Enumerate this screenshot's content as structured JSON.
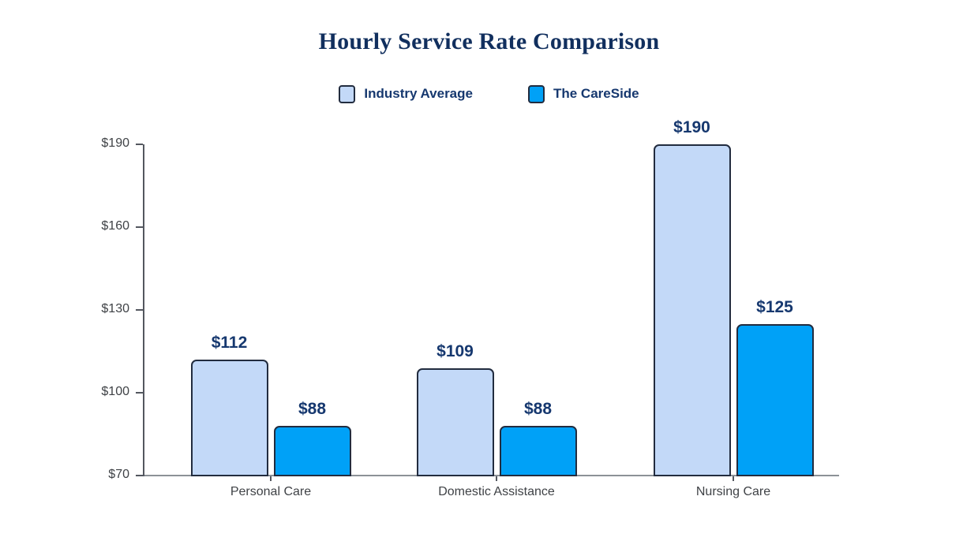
{
  "chart_data": {
    "type": "bar",
    "title": "Hourly Service Rate Comparison",
    "categories": [
      "Personal Care",
      "Domestic Assistance",
      "Nursing Care"
    ],
    "series": [
      {
        "name": "Industry Average",
        "values": [
          112,
          109,
          190
        ],
        "color": "#C3D9F8"
      },
      {
        "name": "The CareSide",
        "values": [
          88,
          88,
          125
        ],
        "color": "#00A1F7"
      }
    ],
    "ylim": [
      70,
      190
    ],
    "yticks": [
      70,
      100,
      130,
      160,
      190
    ],
    "ytick_prefix": "$",
    "value_label_prefix": "$",
    "xlabel": "",
    "ylabel": "",
    "grid": false,
    "legend_position": "top",
    "data_labels_visible": true
  },
  "colors": {
    "title_text": "#112F5E",
    "legend_text": "#16386F",
    "value_label_text": "#16386F",
    "axis_label_text": "#3F4246",
    "bar_border": "#222C3F",
    "yaxis_line": "#53575F",
    "xaxis_line": "#8C9197",
    "background": "#FFFFFF"
  }
}
